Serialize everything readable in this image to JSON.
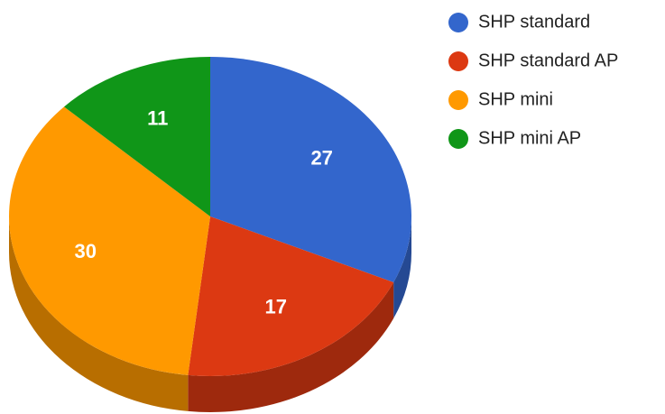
{
  "chart_data": {
    "type": "pie",
    "categories": [
      "SHP standard",
      "SHP standard AP",
      "SHP mini",
      "SHP mini AP"
    ],
    "values": [
      27,
      17,
      30,
      11
    ],
    "colors": [
      "#3366cc",
      "#dc3912",
      "#ff9900",
      "#109618"
    ],
    "legend": "right"
  }
}
